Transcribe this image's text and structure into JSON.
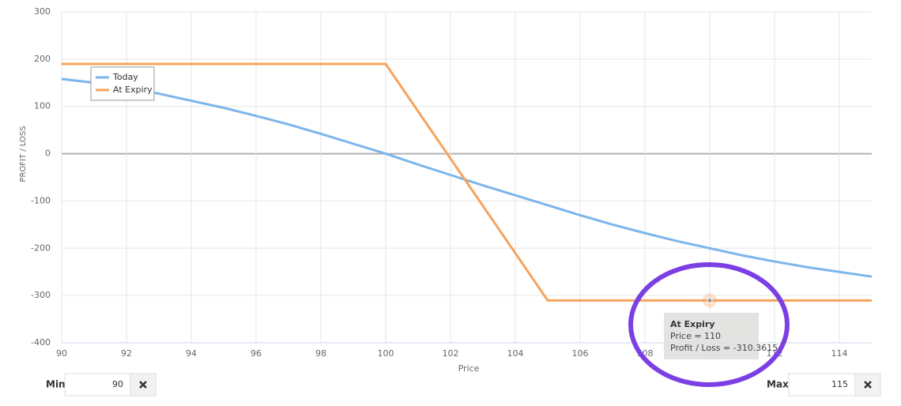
{
  "chart_data": {
    "type": "line",
    "x_label": "Price",
    "y_label": "PROFIT / LOSS",
    "xlim": [
      90,
      115
    ],
    "xticks": [
      90,
      92,
      94,
      96,
      98,
      100,
      102,
      104,
      106,
      108,
      110,
      112,
      114
    ],
    "ylim": [
      -400,
      300
    ],
    "yticks": [
      300,
      200,
      100,
      0,
      -100,
      -200,
      -300,
      -400
    ],
    "grid": true,
    "legend": "top-left",
    "series": [
      {
        "name": "Today",
        "color": "#7cb5ec",
        "x": [
          90,
          91,
          92,
          93,
          94,
          95,
          96,
          97,
          98,
          99,
          100,
          101,
          102,
          103,
          104,
          105,
          106,
          107,
          108,
          109,
          110,
          111,
          112,
          113,
          114,
          115
        ],
        "values": [
          158,
          150,
          140,
          127,
          112,
          97,
          80,
          62,
          42,
          21,
          0,
          -23,
          -45,
          -67,
          -88,
          -109,
          -130,
          -150,
          -168,
          -185,
          -200,
          -215,
          -228,
          -240,
          -250,
          -260
        ]
      },
      {
        "name": "At Expiry",
        "color": "#f7a35c",
        "x": [
          90,
          100,
          105,
          110,
          115
        ],
        "values": [
          189.6385,
          189.6385,
          -310.3615,
          -310.3615,
          -310.3615
        ]
      }
    ],
    "tooltip": {
      "title": "At Expiry",
      "lines": [
        "Price = 110",
        "Profit / Loss = -310.3615"
      ]
    }
  },
  "controls": {
    "min_label": "Min",
    "max_label": "Max"
  }
}
